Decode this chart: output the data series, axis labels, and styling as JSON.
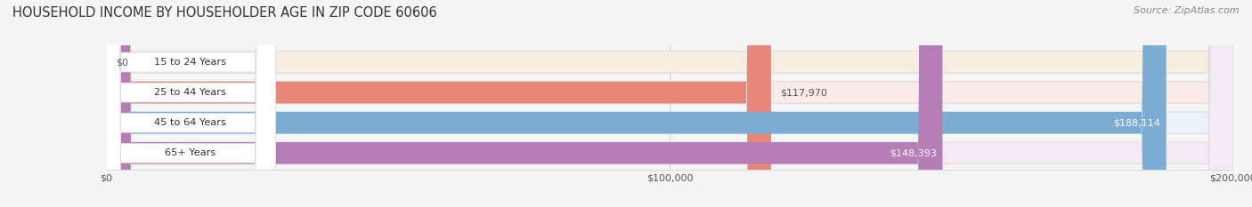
{
  "title": "HOUSEHOLD INCOME BY HOUSEHOLDER AGE IN ZIP CODE 60606",
  "source": "Source: ZipAtlas.com",
  "categories": [
    "15 to 24 Years",
    "25 to 44 Years",
    "45 to 64 Years",
    "65+ Years"
  ],
  "values": [
    0,
    117970,
    188114,
    148393
  ],
  "bar_colors": [
    "#f2bc88",
    "#e8867a",
    "#7bacd4",
    "#b57db5"
  ],
  "background_colors": [
    "#f7ece0",
    "#faeae8",
    "#eaf1f8",
    "#f3eaf3"
  ],
  "xlim": [
    0,
    200000
  ],
  "xtick_labels": [
    "$0",
    "$100,000",
    "$200,000"
  ],
  "value_labels": [
    "$0",
    "$117,970",
    "$188,114",
    "$148,393"
  ],
  "title_fontsize": 10.5,
  "source_fontsize": 8,
  "figsize": [
    14.06,
    2.33
  ],
  "dpi": 100,
  "bg_color": "#f5f5f5"
}
